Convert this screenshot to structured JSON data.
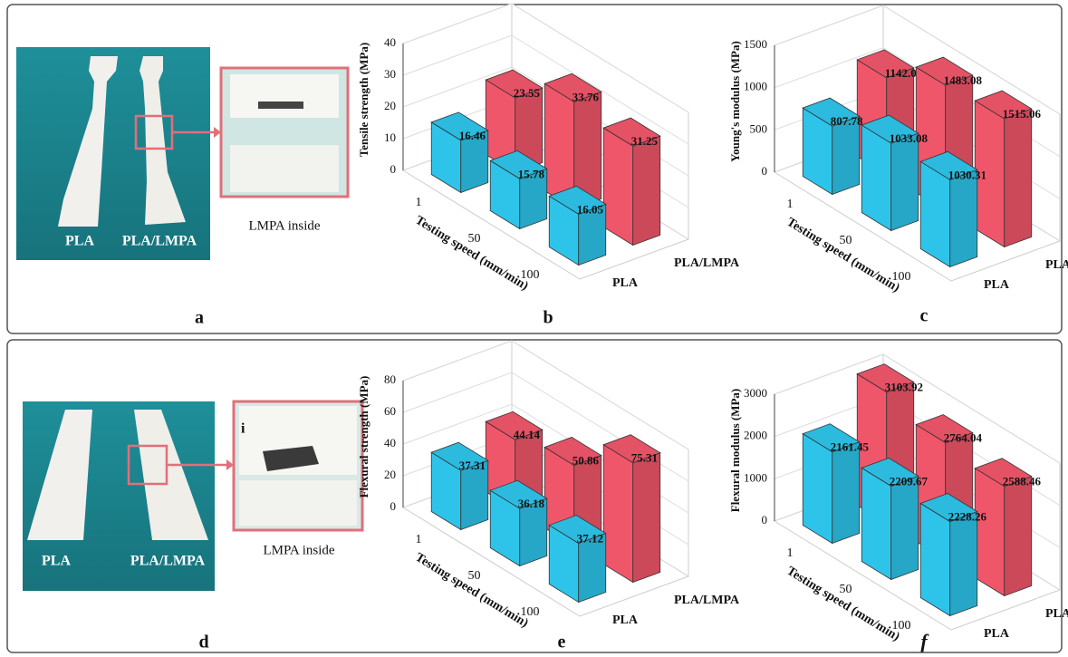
{
  "panel_labels": [
    "a",
    "b",
    "c",
    "d",
    "e",
    "f"
  ],
  "photos": [
    {
      "labels": [
        "PLA",
        "PLA/LMPA"
      ],
      "zoom_label": "LMPA inside"
    },
    {
      "labels": [
        "PLA",
        "PLA/LMPA"
      ],
      "zoom_label": "LMPA inside",
      "zoom_marker": "i"
    }
  ],
  "chart_data": [
    {
      "type": "bar3d",
      "ylabel": "Tensile strength (MPa)",
      "xlabel": "Testing speed (mm/min)",
      "categories": [
        "1",
        "50",
        "100"
      ],
      "series": [
        {
          "name": "PLA",
          "color": "#2ec4ea",
          "values": [
            16.46,
            15.78,
            16.05
          ]
        },
        {
          "name": "PLA/LMPA",
          "color": "#f0566a",
          "values": [
            23.55,
            33.76,
            31.25
          ]
        }
      ],
      "ylim": [
        0,
        40
      ],
      "yticks": [
        0,
        10,
        20,
        30,
        40
      ],
      "grid": true
    },
    {
      "type": "bar3d",
      "ylabel": "Young's modulus (MPa)",
      "xlabel": "Testing speed (mm/min)",
      "categories": [
        "1",
        "50",
        "100"
      ],
      "series": [
        {
          "name": "PLA",
          "color": "#2ec4ea",
          "values": [
            807.78,
            1033.08,
            1030.31
          ]
        },
        {
          "name": "PLA/LMPA",
          "color": "#f0566a",
          "values": [
            1142.02,
            1483.08,
            1515.06
          ]
        }
      ],
      "ylim": [
        0,
        1500
      ],
      "yticks": [
        0,
        500,
        1000,
        1500
      ],
      "grid": true
    },
    {
      "type": "bar3d",
      "ylabel": "Flexural strength (MPa)",
      "xlabel": "Testing speed (mm/min)",
      "categories": [
        "1",
        "50",
        "100"
      ],
      "series": [
        {
          "name": "PLA",
          "color": "#2ec4ea",
          "values": [
            37.31,
            36.18,
            37.12
          ]
        },
        {
          "name": "PLA/LMPA",
          "color": "#f0566a",
          "values": [
            44.14,
            50.86,
            75.31
          ]
        }
      ],
      "ylim": [
        0,
        80
      ],
      "yticks": [
        0,
        20,
        40,
        60,
        80
      ],
      "grid": true
    },
    {
      "type": "bar3d",
      "ylabel": "Flexural modulus (MPa)",
      "xlabel": "Testing speed (mm/min)",
      "categories": [
        "1",
        "50",
        "100"
      ],
      "series": [
        {
          "name": "PLA",
          "color": "#2ec4ea",
          "values": [
            2161.45,
            2209.67,
            2228.26
          ]
        },
        {
          "name": "PLA/LMPA",
          "color": "#f0566a",
          "values": [
            3103.92,
            2764.04,
            2588.46
          ]
        }
      ],
      "ylim": [
        0,
        3000
      ],
      "yticks": [
        0,
        1000,
        2000,
        3000
      ],
      "grid": true
    }
  ]
}
